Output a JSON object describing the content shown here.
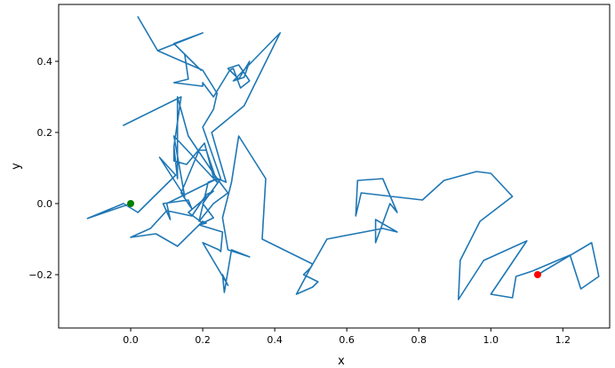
{
  "chart_data": {
    "type": "line",
    "title": "",
    "xlabel": "x",
    "ylabel": "y",
    "xlim": [
      -0.2,
      1.33
    ],
    "ylim": [
      -0.35,
      0.56
    ],
    "xticks": [
      0.0,
      0.2,
      0.4,
      0.6,
      0.8,
      1.0,
      1.2
    ],
    "xtick_labels": [
      "0.0",
      "0.2",
      "0.4",
      "0.6",
      "0.8",
      "1.0",
      "1.2"
    ],
    "yticks": [
      -0.2,
      0.0,
      0.2,
      0.4
    ],
    "ytick_labels": [
      "−0.2",
      "0.0",
      "0.2",
      "0.4"
    ],
    "grid": false,
    "colors": {
      "line": "#1f77b4",
      "start": "#008000",
      "end": "#ff0000",
      "axes": "#000000"
    },
    "series": [
      {
        "values": [
          [
            0.0,
            0.0
          ],
          [
            -0.12,
            -0.042
          ],
          [
            -0.02,
            0.0
          ],
          [
            0.02,
            -0.025
          ],
          [
            0.125,
            0.08
          ],
          [
            0.08,
            0.13
          ],
          [
            0.15,
            0.02
          ],
          [
            0.12,
            0.19
          ],
          [
            0.24,
            0.06
          ],
          [
            0.21,
            0.15
          ],
          [
            0.19,
            0.15
          ],
          [
            0.14,
            0.03
          ],
          [
            0.17,
            -0.015
          ],
          [
            0.16,
            0.01
          ],
          [
            0.09,
            0.0
          ],
          [
            0.11,
            -0.045
          ],
          [
            0.1,
            0.0
          ],
          [
            0.2,
            0.05
          ],
          [
            0.24,
            0.07
          ],
          [
            0.27,
            0.03
          ],
          [
            0.23,
            0.0
          ],
          [
            0.19,
            -0.05
          ],
          [
            0.215,
            0.06
          ],
          [
            0.24,
            0.07
          ],
          [
            0.16,
            0.19
          ],
          [
            0.13,
            0.3
          ],
          [
            0.13,
            0.07
          ],
          [
            0.12,
            0.16
          ],
          [
            0.14,
            0.3
          ],
          [
            -0.02,
            0.22
          ],
          [
            0.14,
            0.3
          ],
          [
            0.12,
            0.16
          ],
          [
            0.12,
            0.12
          ],
          [
            0.155,
            0.11
          ],
          [
            0.205,
            0.17
          ],
          [
            0.23,
            0.075
          ],
          [
            0.265,
            0.06
          ],
          [
            0.225,
            0.2
          ],
          [
            0.315,
            0.275
          ],
          [
            0.415,
            0.48
          ],
          [
            0.285,
            0.345
          ],
          [
            0.315,
            0.355
          ],
          [
            0.33,
            0.4
          ],
          [
            0.3,
            0.35
          ],
          [
            0.27,
            0.38
          ],
          [
            0.3,
            0.39
          ],
          [
            0.33,
            0.345
          ],
          [
            0.305,
            0.325
          ],
          [
            0.285,
            0.38
          ],
          [
            0.275,
            0.375
          ],
          [
            0.23,
            0.3
          ],
          [
            0.2,
            0.34
          ],
          [
            0.2,
            0.33
          ],
          [
            0.12,
            0.34
          ],
          [
            0.16,
            0.35
          ],
          [
            0.15,
            0.42
          ],
          [
            0.195,
            0.375
          ],
          [
            0.12,
            0.45
          ],
          [
            0.2,
            0.48
          ],
          [
            0.075,
            0.43
          ],
          [
            0.02,
            0.525
          ],
          [
            0.075,
            0.43
          ],
          [
            0.12,
            0.41
          ],
          [
            0.2,
            0.375
          ],
          [
            0.24,
            0.31
          ],
          [
            0.23,
            0.265
          ],
          [
            0.2,
            0.215
          ],
          [
            0.25,
            0.07
          ],
          [
            0.2,
            0.0
          ],
          [
            0.23,
            -0.04
          ],
          [
            0.2,
            -0.055
          ],
          [
            0.16,
            -0.025
          ],
          [
            0.23,
            0.035
          ],
          [
            0.21,
            0.025
          ],
          [
            0.17,
            -0.035
          ],
          [
            0.1,
            -0.02
          ],
          [
            0.055,
            -0.07
          ],
          [
            0.0,
            -0.095
          ],
          [
            0.07,
            -0.085
          ],
          [
            0.13,
            -0.12
          ],
          [
            0.2,
            -0.05
          ],
          [
            0.21,
            -0.055
          ],
          [
            0.19,
            -0.06
          ],
          [
            0.255,
            -0.08
          ],
          [
            0.25,
            -0.135
          ],
          [
            0.245,
            -0.13
          ],
          [
            0.2,
            -0.11
          ],
          [
            0.27,
            -0.23
          ],
          [
            0.255,
            -0.2
          ],
          [
            0.26,
            -0.25
          ],
          [
            0.28,
            -0.13
          ],
          [
            0.33,
            -0.15
          ],
          [
            0.27,
            -0.13
          ],
          [
            0.255,
            -0.04
          ],
          [
            0.28,
            0.06
          ],
          [
            0.3,
            0.19
          ],
          [
            0.375,
            0.07
          ],
          [
            0.365,
            -0.1
          ],
          [
            0.505,
            -0.17
          ],
          [
            0.46,
            -0.255
          ],
          [
            0.505,
            -0.235
          ],
          [
            0.52,
            -0.22
          ],
          [
            0.48,
            -0.2
          ],
          [
            0.5,
            -0.18
          ],
          [
            0.545,
            -0.1
          ],
          [
            0.7,
            -0.07
          ],
          [
            0.74,
            -0.08
          ],
          [
            0.68,
            -0.045
          ],
          [
            0.68,
            -0.11
          ],
          [
            0.72,
            0.0
          ],
          [
            0.74,
            -0.025
          ],
          [
            0.7,
            0.07
          ],
          [
            0.63,
            0.065
          ],
          [
            0.625,
            -0.035
          ],
          [
            0.64,
            0.03
          ],
          [
            0.81,
            0.01
          ],
          [
            0.87,
            0.065
          ],
          [
            0.96,
            0.09
          ],
          [
            1.0,
            0.085
          ],
          [
            1.06,
            0.02
          ],
          [
            0.97,
            -0.05
          ],
          [
            0.915,
            -0.16
          ],
          [
            0.91,
            -0.27
          ],
          [
            0.98,
            -0.16
          ],
          [
            1.1,
            -0.105
          ],
          [
            1.0,
            -0.255
          ],
          [
            1.06,
            -0.265
          ],
          [
            1.07,
            -0.205
          ],
          [
            1.115,
            -0.19
          ],
          [
            1.22,
            -0.145
          ],
          [
            1.25,
            -0.24
          ],
          [
            1.3,
            -0.205
          ],
          [
            1.28,
            -0.11
          ],
          [
            1.13,
            -0.2
          ]
        ]
      }
    ],
    "start_point": [
      0.0,
      0.0
    ],
    "end_point": [
      1.13,
      -0.2
    ]
  }
}
